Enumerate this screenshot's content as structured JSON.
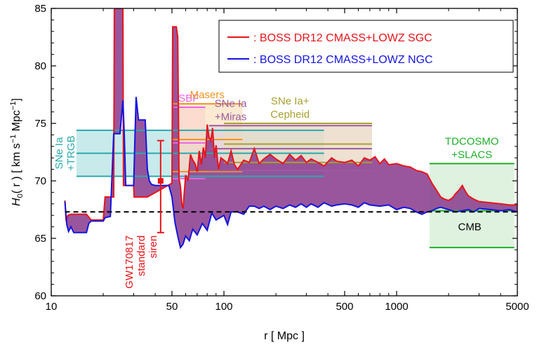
{
  "chart_data": {
    "type": "area",
    "xscale": "log",
    "xlim": [
      10,
      5000
    ],
    "ylim": [
      60,
      85
    ],
    "xlabel": "r [ Mpc ]",
    "ylabel": {
      "prefix": "H",
      "sub": "0",
      "mid": "( r ) [ km s",
      "sup1": "−1",
      "mid2": " Mpc",
      "sup2": "−1",
      "end": "]"
    },
    "xticks": [
      {
        "v": 10,
        "label": "10"
      },
      {
        "v": 50,
        "label": "50"
      },
      {
        "v": 100,
        "label": "100"
      },
      {
        "v": 500,
        "label": "500"
      },
      {
        "v": 1000,
        "label": "1000"
      },
      {
        "v": 5000,
        "label": "5000"
      }
    ],
    "yticks": [
      {
        "v": 60,
        "label": "60"
      },
      {
        "v": 65,
        "label": "65"
      },
      {
        "v": 70,
        "label": "70"
      },
      {
        "v": 75,
        "label": "75"
      },
      {
        "v": 80,
        "label": "80"
      },
      {
        "v": 85,
        "label": "85"
      }
    ],
    "legend": {
      "placement": "top-right",
      "items": [
        {
          "label": ": BOSS DR12 CMASS+LOWZ SGC",
          "color": "#e8141a"
        },
        {
          "label": ": BOSS DR12 CMASS+LOWZ NGC",
          "color": "#1414e0"
        }
      ]
    },
    "fill_color": "#8b3f8f",
    "series": [
      {
        "name": "BOSS DR12 CMASS+LOWZ SGC",
        "color": "#e8141a",
        "points": [
          [
            12,
            68.3
          ],
          [
            12.2,
            66.5
          ],
          [
            12.5,
            67.0
          ],
          [
            13,
            67.1
          ],
          [
            16,
            67.1
          ],
          [
            17,
            66.6
          ],
          [
            20,
            66.6
          ],
          [
            20.5,
            68.6
          ],
          [
            23,
            68.6
          ],
          [
            23.2,
            85
          ],
          [
            26,
            85
          ],
          [
            26.2,
            69.6
          ],
          [
            28,
            69.6
          ],
          [
            30,
            69.6
          ],
          [
            30.2,
            68.6
          ],
          [
            35,
            68.6
          ],
          [
            36,
            68.6
          ],
          [
            50,
            69.8
          ],
          [
            50.5,
            83.4
          ],
          [
            53,
            83.4
          ],
          [
            54,
            82.5
          ],
          [
            55,
            70.2
          ],
          [
            56,
            69.5
          ],
          [
            57,
            68
          ],
          [
            58,
            67.6
          ],
          [
            60,
            70.5
          ],
          [
            62,
            70.0
          ],
          [
            64,
            72.3
          ],
          [
            66,
            71.8
          ],
          [
            68,
            71.5
          ],
          [
            70,
            70.8
          ],
          [
            72,
            72.6
          ],
          [
            74,
            71.4
          ],
          [
            76,
            72.9
          ],
          [
            78,
            72.0
          ],
          [
            80,
            74.9
          ],
          [
            82,
            73.8
          ],
          [
            84,
            73.5
          ],
          [
            86,
            74.6
          ],
          [
            88,
            72.0
          ],
          [
            90,
            73.1
          ],
          [
            93,
            71.0
          ],
          [
            96,
            72.0
          ],
          [
            100,
            71.8
          ],
          [
            105,
            71.5
          ],
          [
            110,
            72.6
          ],
          [
            115,
            71.4
          ],
          [
            120,
            71.0
          ],
          [
            130,
            71.8
          ],
          [
            140,
            71.6
          ],
          [
            150,
            72.8
          ],
          [
            160,
            71.5
          ],
          [
            170,
            71.9
          ],
          [
            185,
            72.3
          ],
          [
            200,
            71.9
          ],
          [
            220,
            71.5
          ],
          [
            240,
            72.3
          ],
          [
            260,
            71.8
          ],
          [
            280,
            72.2
          ],
          [
            300,
            71.6
          ],
          [
            320,
            71.9
          ],
          [
            350,
            71.6
          ],
          [
            380,
            71.3
          ],
          [
            420,
            72.0
          ],
          [
            450,
            71.7
          ],
          [
            500,
            71.6
          ],
          [
            550,
            71.8
          ],
          [
            600,
            71.3
          ],
          [
            650,
            72.0
          ],
          [
            700,
            71.8
          ],
          [
            750,
            72.1
          ],
          [
            800,
            71.5
          ],
          [
            850,
            71.9
          ],
          [
            900,
            71.4
          ],
          [
            1000,
            71.5
          ],
          [
            1100,
            71.3
          ],
          [
            1200,
            71.2
          ],
          [
            1300,
            70.9
          ],
          [
            1400,
            70.8
          ],
          [
            1500,
            70.6
          ],
          [
            1600,
            69.8
          ],
          [
            1700,
            69.2
          ],
          [
            1800,
            68.6
          ],
          [
            1900,
            68.4
          ],
          [
            2000,
            68.3
          ],
          [
            2100,
            68.5
          ],
          [
            2200,
            68.9
          ],
          [
            2300,
            69.2
          ],
          [
            2400,
            69.6
          ],
          [
            2500,
            69.1
          ],
          [
            2600,
            68.7
          ],
          [
            2800,
            68.4
          ],
          [
            3000,
            68.2
          ],
          [
            3500,
            68.1
          ],
          [
            4000,
            68.0
          ],
          [
            4500,
            67.9
          ],
          [
            5000,
            67.9
          ]
        ]
      },
      {
        "name": "BOSS DR12 CMASS+LOWZ NGC",
        "color": "#1414e0",
        "points": [
          [
            12,
            68.2
          ],
          [
            12.3,
            66.2
          ],
          [
            12.6,
            65.6
          ],
          [
            13,
            66.0
          ],
          [
            13.5,
            65.5
          ],
          [
            16,
            65.5
          ],
          [
            16.5,
            66.3
          ],
          [
            17,
            66.5
          ],
          [
            20,
            66.5
          ],
          [
            20.5,
            66.8
          ],
          [
            22,
            66.9
          ],
          [
            23,
            74.1
          ],
          [
            25,
            74.1
          ],
          [
            26,
            77.0
          ],
          [
            26.5,
            73.9
          ],
          [
            27,
            69.6
          ],
          [
            30,
            69.6
          ],
          [
            30.5,
            73.5
          ],
          [
            31,
            77.3
          ],
          [
            32,
            75.3
          ],
          [
            35,
            75.3
          ],
          [
            36,
            71.0
          ],
          [
            37,
            70.0
          ],
          [
            38,
            69.7
          ],
          [
            40,
            69.6
          ],
          [
            48,
            69.6
          ],
          [
            50,
            68.6
          ],
          [
            52,
            66.4
          ],
          [
            54,
            65.2
          ],
          [
            56,
            64.2
          ],
          [
            58,
            64.5
          ],
          [
            60,
            65.2
          ],
          [
            63,
            64.8
          ],
          [
            66,
            65.8
          ],
          [
            70,
            65.3
          ],
          [
            75,
            66.3
          ],
          [
            80,
            65.7
          ],
          [
            85,
            67.2
          ],
          [
            90,
            66.6
          ],
          [
            95,
            66.8
          ],
          [
            100,
            67.0
          ],
          [
            105,
            66.2
          ],
          [
            110,
            67.3
          ],
          [
            120,
            67.3
          ],
          [
            130,
            67.1
          ],
          [
            140,
            67.8
          ],
          [
            150,
            67.8
          ],
          [
            160,
            67.6
          ],
          [
            170,
            67.8
          ],
          [
            185,
            67.5
          ],
          [
            200,
            67.8
          ],
          [
            220,
            67.6
          ],
          [
            240,
            67.9
          ],
          [
            260,
            67.7
          ],
          [
            280,
            68.0
          ],
          [
            300,
            67.7
          ],
          [
            320,
            68.0
          ],
          [
            350,
            67.7
          ],
          [
            380,
            68.1
          ],
          [
            420,
            67.8
          ],
          [
            450,
            67.9
          ],
          [
            500,
            68.0
          ],
          [
            550,
            67.9
          ],
          [
            600,
            67.7
          ],
          [
            650,
            68.1
          ],
          [
            700,
            67.9
          ],
          [
            800,
            67.8
          ],
          [
            900,
            67.9
          ],
          [
            1000,
            67.5
          ],
          [
            1100,
            67.7
          ],
          [
            1200,
            67.6
          ],
          [
            1300,
            67.3
          ],
          [
            1400,
            67.1
          ],
          [
            1500,
            67.3
          ],
          [
            1600,
            67.4
          ],
          [
            1700,
            67.6
          ],
          [
            1800,
            67.7
          ],
          [
            2000,
            67.5
          ],
          [
            2200,
            67.3
          ],
          [
            2400,
            67.4
          ],
          [
            2600,
            67.5
          ],
          [
            2800,
            67.3
          ],
          [
            3000,
            67.6
          ],
          [
            3500,
            67.5
          ],
          [
            4000,
            67.4
          ],
          [
            4500,
            67.5
          ],
          [
            5000,
            67.3
          ]
        ]
      }
    ],
    "reference_line": {
      "label": "CMB",
      "y": 67.3,
      "color": "#000000"
    },
    "measurement_bands": [
      {
        "label": [
          "SNe Ia",
          "+TRGB"
        ],
        "x": [
          14,
          380
        ],
        "y": [
          70.4,
          74.4
        ],
        "mid": 72.4,
        "color": "#2aa9ae",
        "fill": "#9ad8da",
        "label_side": "left",
        "label_vertical": true
      },
      {
        "label": [
          "SBF"
        ],
        "x": [
          50,
          78
        ],
        "y": [
          70.2,
          76.4
        ],
        "mid": 73.3,
        "color": "#e767e3",
        "fill": "#f5c6f2",
        "label_side": "top"
      },
      {
        "label": [
          "Masers"
        ],
        "x": [
          50,
          128
        ],
        "y": [
          70.8,
          76.7
        ],
        "mid": 73.6,
        "color": "#f39320",
        "fill": "#fbd8ad",
        "label_side": "top"
      },
      {
        "label": [
          "SNe Ia",
          "+Miras"
        ],
        "x": [
          82,
          720
        ],
        "y": [
          70.9,
          74.8
        ],
        "mid": 72.8,
        "color": "#9c5aa0",
        "fill": "#e6d2e6",
        "label_side": "top"
      },
      {
        "label": [
          "SNe Ia+",
          "Cepheid"
        ],
        "x": [
          100,
          720
        ],
        "y": [
          71.6,
          75.0
        ],
        "mid": 73.2,
        "color": "#a8a030",
        "fill": "#ecdcb8",
        "label_side": "top"
      },
      {
        "label": [
          "TDCOSMO",
          "+SLACS"
        ],
        "x": [
          1550,
          4800
        ],
        "y": [
          64.2,
          71.5
        ],
        "mid": 67.4,
        "color": "#1fae2a",
        "fill": "#c4e8c4",
        "label_side": "top"
      }
    ],
    "gw_siren": {
      "label": [
        "GW170817",
        "standard",
        "siren"
      ],
      "x": 43,
      "y": 70.0,
      "yerr": [
        65.5,
        73.5
      ],
      "color": "#e8141a"
    }
  }
}
